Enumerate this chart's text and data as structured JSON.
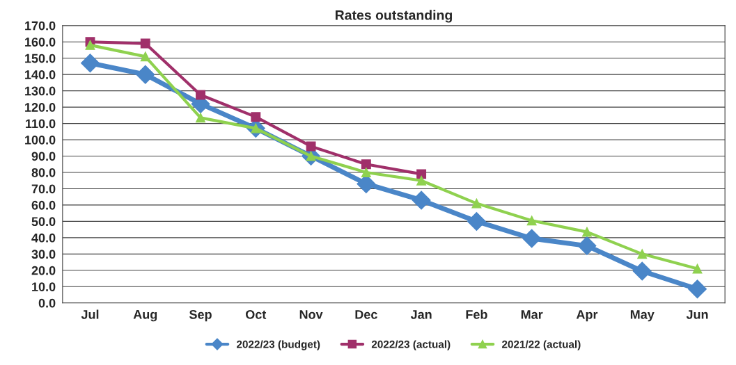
{
  "chart_data": {
    "type": "line",
    "title": "Rates outstanding",
    "categories": [
      "Jul",
      "Aug",
      "Sep",
      "Oct",
      "Nov",
      "Dec",
      "Jan",
      "Feb",
      "Mar",
      "Apr",
      "May",
      "Jun"
    ],
    "series": [
      {
        "name": "2022/23 (budget)",
        "color": "#4a86c8",
        "marker": "diamond",
        "values": [
          147,
          140,
          122,
          107,
          90,
          73,
          63,
          50,
          39.5,
          35,
          19.5,
          8.5
        ]
      },
      {
        "name": "2022/23 (actual)",
        "color": "#a0306a",
        "marker": "square",
        "values": [
          160,
          159,
          127.5,
          114,
          96,
          85,
          79,
          null,
          null,
          null,
          null,
          null
        ]
      },
      {
        "name": "2021/22 (actual)",
        "color": "#8fd14f",
        "marker": "triangle",
        "values": [
          158,
          151,
          113.5,
          107,
          90,
          80,
          75,
          61,
          50.5,
          43.5,
          30,
          21
        ]
      }
    ],
    "ylim": [
      0,
      170
    ],
    "yticks": [
      {
        "value": 0,
        "label": "0.0"
      },
      {
        "value": 10,
        "label": "10.0"
      },
      {
        "value": 20,
        "label": "20.0"
      },
      {
        "value": 30,
        "label": "30.0"
      },
      {
        "value": 40,
        "label": "40.0"
      },
      {
        "value": 50,
        "label": "50.0"
      },
      {
        "value": 60,
        "label": "60.0"
      },
      {
        "value": 70,
        "label": "70.0"
      },
      {
        "value": 80,
        "label": "80.0"
      },
      {
        "value": 90,
        "label": "90.0"
      },
      {
        "value": 100,
        "label": "100.0"
      },
      {
        "value": 110,
        "label": "110.0"
      },
      {
        "value": 120,
        "label": "120.0"
      },
      {
        "value": 130,
        "label": "130.0"
      },
      {
        "value": 140,
        "label": "140.0"
      },
      {
        "value": 150,
        "label": "150.0"
      },
      {
        "value": 160,
        "label": "160.0"
      },
      {
        "value": 170,
        "label": "170.0"
      }
    ],
    "grid": "y",
    "legend": "bottom",
    "line_style": "solid"
  }
}
